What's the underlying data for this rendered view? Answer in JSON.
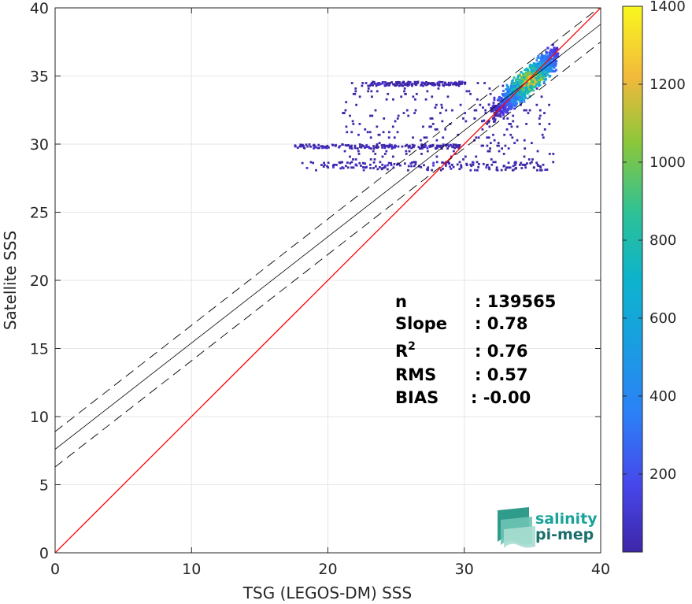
{
  "chart_data": {
    "type": "heatmap",
    "xlabel": "TSG (LEGOS-DM) SSS",
    "ylabel": "Satellite SSS",
    "xlim": [
      0,
      40
    ],
    "ylim": [
      0,
      40
    ],
    "xticks": [
      "0",
      "10",
      "20",
      "30",
      "40"
    ],
    "yticks": [
      "0",
      "5",
      "10",
      "15",
      "20",
      "25",
      "30",
      "35",
      "40"
    ],
    "grid": true,
    "colormap": "parula",
    "colorbar": {
      "range": [
        0,
        1400
      ],
      "ticks": [
        "200",
        "400",
        "600",
        "800",
        "1000",
        "1200",
        "1400"
      ]
    },
    "reference_line": {
      "name": "1:1",
      "color": "#ff0000",
      "slope": 1,
      "intercept": 0
    },
    "fit_line": {
      "slope": 0.78,
      "intercept": 7.6,
      "color": "#000000"
    },
    "envelope_lines": [
      {
        "slope": 0.78,
        "intercept": 8.9,
        "style": "dashed"
      },
      {
        "slope": 0.78,
        "intercept": 6.3,
        "style": "dashed"
      }
    ],
    "density_core": {
      "x_center": 34.7,
      "y_center": 34.6,
      "peak_count": 1400
    },
    "point_clusters": [
      {
        "x": [
          28.5,
          36.7
        ],
        "y": [
          27.3,
          37.0
        ],
        "count": "high"
      },
      {
        "x": [
          23.0,
          30.0
        ],
        "y": [
          34.2,
          34.5
        ],
        "count": "low"
      },
      {
        "x": [
          17.5,
          30.0
        ],
        "y": [
          29.6,
          29.9
        ],
        "count": "low"
      },
      {
        "x": [
          18.0,
          36.0
        ],
        "y": [
          28.0,
          28.6
        ],
        "count": "low"
      }
    ]
  },
  "stats": [
    {
      "label": "n",
      "value": ": 139565"
    },
    {
      "label": "Slope",
      "value": ": 0.78"
    },
    {
      "label": "R",
      "sup": "2",
      "value": ": 0.76"
    },
    {
      "label": "RMS",
      "value": ": 0.57"
    },
    {
      "label": "BIAS",
      "value": ": -0.00"
    }
  ],
  "logo": {
    "line1": "salinity",
    "line2": "pi-mep",
    "color1": "#1aa39a",
    "color2": "#1a6e6a"
  },
  "colors": {
    "one_to_one": "#ff0000",
    "fit": "#000000",
    "grid": "#e6e6e6",
    "axis": "#262626"
  }
}
